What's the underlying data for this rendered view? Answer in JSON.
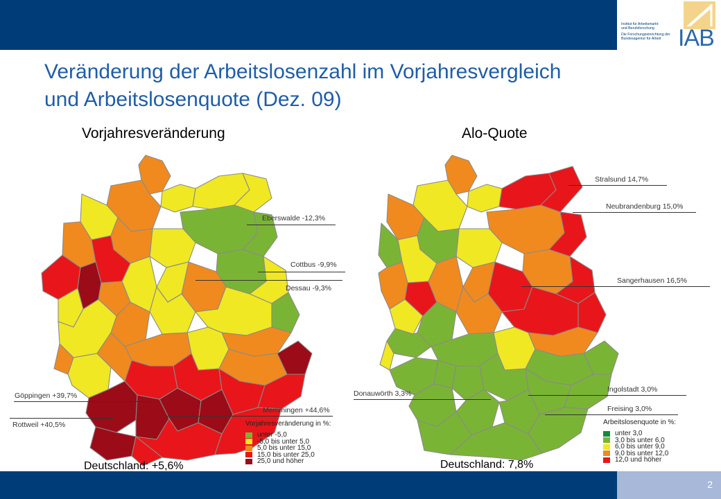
{
  "header": {
    "logo_lines": [
      "Institut für Arbeitsmarkt-",
      "und Berufsforschung",
      "Die Forschungseinrichtung der",
      "Bundesagentur für Arbeit"
    ],
    "logo_text": "IAB",
    "bar_color": "#003c78"
  },
  "title_line1": "Veränderung der Arbeitslosenzahl im Vorjahresvergleich",
  "title_line2": "und Arbeitslosenquote (Dez. 09)",
  "left_map": {
    "subtitle": "Vorjahresveränderung",
    "total": "Deutschland: +5,6%",
    "callouts": [
      "Eberswalde -12,3%",
      "Cottbus -9,9%",
      "Dessau -9,3%",
      "Göppingen +39,7%",
      "Memmingen +44,6%",
      "Rottweil +40,5%"
    ],
    "legend": {
      "title": "Vorjahresveränderung in %:",
      "items": [
        {
          "label": "unter -5,0",
          "color": "#7ab435"
        },
        {
          "label": "-5,0 bis unter 5,0",
          "color": "#f0e823"
        },
        {
          "label": "5,0 bis unter 15,0",
          "color": "#f08a1e"
        },
        {
          "label": "15,0 bis unter 25,0",
          "color": "#e8161a"
        },
        {
          "label": "25,0 und höher",
          "color": "#9b0c18"
        }
      ]
    }
  },
  "right_map": {
    "subtitle": "Alo-Quote",
    "total": "Deutschland: 7,8%",
    "callouts": [
      "Stralsund 14,7%",
      "Neubrandenburg 15,0%",
      "Sangerhausen 16,5%",
      "Donauwörth 3,3%",
      "Ingolstadt 3,0%",
      "Freising 3,0%"
    ],
    "legend": {
      "title": "Arbeitslosenquote in %:",
      "items": [
        {
          "label": "unter 3,0",
          "color": "#118a3c"
        },
        {
          "label": "3,0 bis unter 6,0",
          "color": "#7ab435"
        },
        {
          "label": "6,0 bis unter 9,0",
          "color": "#f0e823"
        },
        {
          "label": "9,0 bis unter 12,0",
          "color": "#f08a1e"
        },
        {
          "label": "12,0 und höher",
          "color": "#e8161a"
        }
      ]
    }
  },
  "page_number": "2"
}
